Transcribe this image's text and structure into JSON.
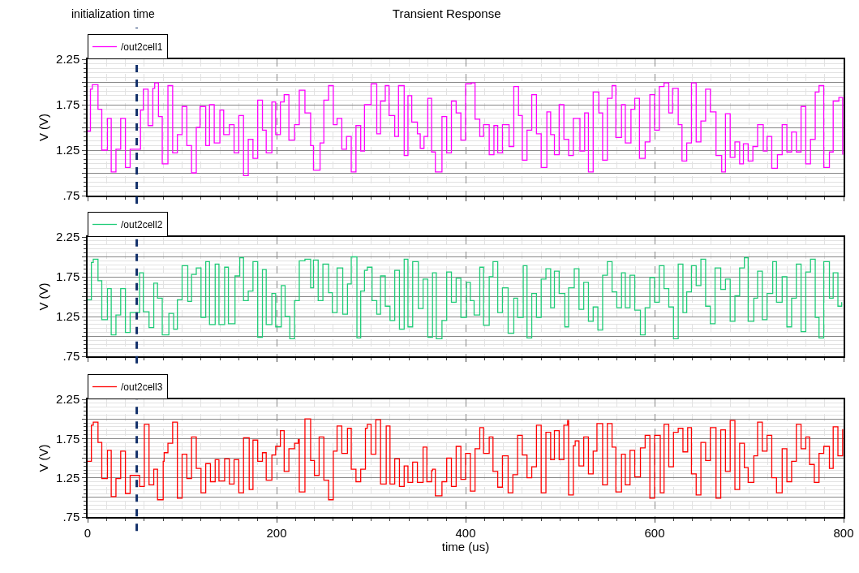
{
  "chart_data": [
    {
      "type": "step",
      "title": "Transient Response",
      "ylabel": "V (V)",
      "legend": "top left",
      "grid": true,
      "tick_labels": "y",
      "xlim": [
        0,
        800
      ],
      "xticks": [
        0,
        200,
        400,
        600,
        800
      ],
      "ylim": [
        0.75,
        2.25
      ],
      "yticks": [
        {
          "value": 0.75,
          "label": ".75"
        },
        {
          "value": 1.0,
          "label": null
        },
        1.25,
        {
          "value": 1.5,
          "label": null
        },
        1.75,
        {
          "value": 2.0,
          "label": null
        },
        2.25
      ],
      "ref_lines": [
        {
          "axis": "x",
          "value": 52,
          "label": "initialization time",
          "color": "#12306a",
          "line_style": "dashed"
        }
      ],
      "x": [
        0,
        3,
        5,
        11,
        15,
        21,
        25,
        30,
        35,
        40,
        45,
        56,
        59,
        64,
        69,
        71,
        75,
        79,
        85,
        90,
        95,
        100,
        105,
        110,
        115,
        119,
        125,
        129,
        134,
        140,
        144,
        150,
        155,
        160,
        165,
        170,
        175,
        180,
        185,
        189,
        195,
        199,
        204,
        208,
        213,
        219,
        224,
        230,
        236,
        239,
        246,
        250,
        255,
        260,
        264,
        269,
        274,
        279,
        284,
        289,
        293,
        300,
        306,
        310,
        315,
        319,
        325,
        329,
        335,
        339,
        343,
        349,
        352,
        356,
        360,
        364,
        368,
        375,
        380,
        385,
        390,
        395,
        400,
        406,
        410,
        415,
        419,
        425,
        430,
        434,
        439,
        446,
        451,
        456,
        460,
        465,
        470,
        475,
        480,
        486,
        490,
        494,
        499,
        504,
        509,
        514,
        521,
        526,
        530,
        535,
        541,
        545,
        550,
        555,
        559,
        565,
        569,
        575,
        579,
        584,
        590,
        595,
        600,
        605,
        610,
        615,
        619,
        625,
        629,
        634,
        639,
        644,
        649,
        654,
        659,
        665,
        671,
        675,
        680,
        685,
        690,
        694,
        699,
        704,
        709,
        715,
        719,
        724,
        730,
        735,
        740,
        745,
        750,
        755,
        760,
        765,
        770,
        774,
        779,
        785,
        789,
        795,
        799
      ],
      "series": [
        {
          "name": "/out2cell1",
          "color": "#ff00ff",
          "values": [
            1.46,
            1.92,
            1.97,
            1.7,
            1.25,
            1.6,
            1.01,
            1.26,
            1.6,
            1.06,
            1.26,
            1.69,
            1.92,
            1.52,
            1.93,
            1.99,
            1.62,
            1.1,
            1.96,
            1.22,
            1.42,
            1.73,
            1.3,
            1.0,
            1.5,
            1.73,
            1.3,
            1.75,
            1.33,
            1.69,
            1.42,
            1.53,
            1.22,
            1.63,
            0.97,
            1.37,
            1.16,
            1.8,
            1.47,
            1.22,
            1.78,
            1.42,
            1.78,
            1.86,
            1.36,
            1.53,
            1.91,
            1.66,
            1.3,
            1.03,
            1.33,
            1.8,
            1.96,
            1.53,
            1.6,
            1.26,
            1.4,
            1.01,
            1.52,
            1.24,
            1.75,
            1.98,
            1.43,
            1.79,
            1.96,
            1.63,
            1.4,
            1.96,
            1.19,
            1.85,
            1.56,
            1.43,
            1.27,
            1.4,
            1.82,
            1.23,
            1.01,
            1.62,
            1.22,
            1.79,
            1.66,
            1.36,
            1.98,
            1.99,
            1.59,
            1.4,
            1.53,
            1.2,
            1.52,
            1.22,
            1.53,
            1.29,
            1.95,
            1.63,
            1.14,
            1.47,
            1.86,
            1.43,
            1.06,
            1.67,
            1.42,
            1.2,
            1.75,
            1.37,
            1.19,
            1.6,
            1.24,
            1.66,
            1.01,
            1.89,
            1.66,
            1.14,
            1.82,
            1.96,
            1.39,
            1.75,
            1.33,
            1.7,
            1.82,
            1.16,
            1.34,
            1.86,
            1.47,
            1.95,
            1.99,
            1.66,
            1.93,
            1.53,
            1.13,
            1.33,
            1.99,
            1.34,
            1.57,
            1.92,
            1.67,
            1.19,
            1.01,
            1.65,
            1.17,
            1.34,
            1.1,
            1.32,
            1.13,
            1.29,
            1.53,
            1.24,
            1.4,
            1.05,
            1.2,
            1.53,
            1.23,
            1.45,
            1.23,
            1.73,
            1.1,
            1.37,
            1.89,
            1.96,
            1.06,
            1.23,
            1.79,
            1.83,
            1.2
          ]
        }
      ]
    },
    {
      "type": "step",
      "ylabel": "V (V)",
      "legend": "top left",
      "grid": true,
      "tick_labels": "y",
      "xlim": [
        0,
        800
      ],
      "xticks": [
        0,
        200,
        400,
        600,
        800
      ],
      "ylim": [
        0.75,
        2.25
      ],
      "yticks": [
        {
          "value": 0.75,
          "label": ".75"
        },
        {
          "value": 1.0,
          "label": null
        },
        1.25,
        {
          "value": 1.5,
          "label": null
        },
        1.75,
        {
          "value": 2.0,
          "label": null
        },
        2.25
      ],
      "ref_lines": [
        {
          "axis": "x",
          "value": 52,
          "color": "#12306a",
          "line_style": "dashed"
        }
      ],
      "x": [
        0,
        4,
        6,
        11,
        15,
        21,
        25,
        30,
        35,
        40,
        45,
        55,
        59,
        65,
        70,
        74,
        79,
        86,
        91,
        95,
        100,
        106,
        110,
        115,
        120,
        125,
        129,
        135,
        139,
        145,
        149,
        156,
        161,
        165,
        170,
        175,
        180,
        185,
        189,
        195,
        199,
        205,
        209,
        214,
        219,
        224,
        230,
        236,
        239,
        244,
        249,
        255,
        259,
        264,
        270,
        275,
        279,
        285,
        289,
        293,
        296,
        301,
        306,
        310,
        315,
        320,
        325,
        330,
        335,
        339,
        344,
        350,
        355,
        360,
        365,
        369,
        375,
        380,
        385,
        390,
        395,
        401,
        405,
        409,
        415,
        419,
        425,
        429,
        434,
        439,
        445,
        451,
        455,
        461,
        465,
        470,
        475,
        480,
        485,
        490,
        494,
        499,
        505,
        509,
        515,
        520,
        525,
        530,
        535,
        540,
        545,
        550,
        555,
        560,
        565,
        569,
        574,
        579,
        585,
        590,
        595,
        600,
        605,
        610,
        615,
        620,
        625,
        630,
        634,
        639,
        644,
        649,
        654,
        659,
        664,
        670,
        675,
        680,
        685,
        690,
        695,
        699,
        705,
        709,
        714,
        719,
        725,
        729,
        735,
        740,
        745,
        750,
        755,
        760,
        765,
        770,
        774,
        779,
        785,
        789,
        794,
        798
      ],
      "series": [
        {
          "name": "/out2cell2",
          "color": "#20cc78",
          "values": [
            1.46,
            1.93,
            1.97,
            1.7,
            1.21,
            1.6,
            1.02,
            1.27,
            1.6,
            1.05,
            1.3,
            1.8,
            1.31,
            1.11,
            1.67,
            1.48,
            1.02,
            1.29,
            1.09,
            1.46,
            1.89,
            1.44,
            1.78,
            1.86,
            1.24,
            1.94,
            1.15,
            1.91,
            1.15,
            1.87,
            1.16,
            1.76,
            1.99,
            1.45,
            1.57,
            1.94,
            0.99,
            1.84,
            1.15,
            1.54,
            1.12,
            1.64,
            1.25,
            0.97,
            1.45,
            1.95,
            1.97,
            1.61,
            1.96,
            1.45,
            1.91,
            1.55,
            1.3,
            1.86,
            1.28,
            1.66,
            2.0,
            0.98,
            1.57,
            1.83,
            1.87,
            1.45,
            1.28,
            1.76,
            1.38,
            1.2,
            1.83,
            1.09,
            1.97,
            1.12,
            1.94,
            1.35,
            1.72,
            0.99,
            1.8,
            0.97,
            1.2,
            1.81,
            1.43,
            1.73,
            1.24,
            1.68,
            1.45,
            1.27,
            1.87,
            1.14,
            1.75,
            1.94,
            1.3,
            1.61,
            1.04,
            1.48,
            1.24,
            1.89,
            0.98,
            1.54,
            1.24,
            1.72,
            1.85,
            1.36,
            1.82,
            1.54,
            1.12,
            1.61,
            1.85,
            1.34,
            1.68,
            1.19,
            1.37,
            1.08,
            1.77,
            1.94,
            1.56,
            1.36,
            1.8,
            1.36,
            1.77,
            1.33,
            1.02,
            1.36,
            1.74,
            1.43,
            1.89,
            1.6,
            1.37,
            0.97,
            1.91,
            1.3,
            1.56,
            1.89,
            1.64,
            1.97,
            1.38,
            1.16,
            1.86,
            1.59,
            1.72,
            1.19,
            1.51,
            1.86,
            1.99,
            1.19,
            1.48,
            1.82,
            1.21,
            1.54,
            1.94,
            1.43,
            1.75,
            1.12,
            1.48,
            1.91,
            1.06,
            1.81,
            1.97,
            1.24,
            0.98,
            1.94,
            1.48,
            1.8,
            1.38,
            1.43
          ]
        }
      ]
    },
    {
      "type": "step",
      "xlabel": "time (us)",
      "ylabel": "V (V)",
      "legend": "top left",
      "grid": true,
      "xlim": [
        0,
        800
      ],
      "xticks": [
        0,
        200,
        400,
        600,
        800
      ],
      "ylim": [
        0.75,
        2.25
      ],
      "yticks": [
        {
          "value": 0.75,
          "label": ".75"
        },
        {
          "value": 1.0,
          "label": null
        },
        1.25,
        {
          "value": 1.5,
          "label": null
        },
        1.75,
        {
          "value": 2.0,
          "label": null
        },
        2.25
      ],
      "ref_lines": [
        {
          "axis": "x",
          "value": 52,
          "color": "#12306a",
          "line_style": "dashed"
        }
      ],
      "x": [
        0,
        4,
        6,
        11,
        15,
        21,
        25,
        30,
        35,
        40,
        45,
        55,
        60,
        65,
        70,
        74,
        80,
        81,
        85,
        90,
        95,
        100,
        105,
        110,
        115,
        120,
        125,
        130,
        135,
        139,
        145,
        150,
        155,
        160,
        165,
        171,
        175,
        180,
        185,
        189,
        195,
        199,
        204,
        208,
        213,
        219,
        223,
        224,
        230,
        236,
        240,
        245,
        250,
        255,
        260,
        264,
        269,
        275,
        279,
        284,
        289,
        294,
        296,
        300,
        305,
        310,
        316,
        320,
        325,
        330,
        335,
        339,
        344,
        349,
        355,
        359,
        364,
        365,
        368,
        375,
        380,
        385,
        390,
        395,
        400,
        405,
        410,
        415,
        419,
        425,
        429,
        434,
        439,
        445,
        450,
        455,
        460,
        465,
        470,
        475,
        480,
        485,
        490,
        494,
        499,
        504,
        508,
        509,
        514,
        516,
        520,
        525,
        530,
        535,
        539,
        545,
        550,
        555,
        559,
        565,
        569,
        574,
        579,
        585,
        590,
        595,
        600,
        606,
        610,
        615,
        620,
        625,
        630,
        635,
        639,
        644,
        649,
        654,
        659,
        665,
        670,
        675,
        680,
        685,
        690,
        695,
        699,
        705,
        709,
        714,
        719,
        724,
        729,
        735,
        740,
        745,
        750,
        755,
        760,
        764,
        769,
        774,
        779,
        785,
        789,
        794,
        799
      ],
      "series": [
        {
          "name": "/out2cell3",
          "color": "#ff0000",
          "values": [
            1.46,
            1.92,
            1.96,
            1.7,
            1.24,
            1.6,
            1.01,
            1.24,
            1.59,
            1.05,
            1.28,
            1.14,
            1.93,
            1.16,
            1.36,
            0.97,
            1.46,
            1.57,
            1.69,
            1.96,
            0.99,
            1.55,
            1.24,
            1.77,
            1.37,
            1.06,
            1.43,
            1.2,
            1.48,
            1.21,
            1.49,
            1.17,
            1.48,
            1.06,
            1.76,
            1.1,
            1.73,
            1.46,
            1.57,
            1.22,
            1.54,
            1.65,
            1.85,
            1.33,
            1.62,
            1.69,
            1.74,
            1.07,
            2.0,
            1.47,
            1.28,
            1.77,
            1.22,
            0.97,
            1.59,
            1.91,
            1.56,
            1.88,
            1.36,
            1.2,
            1.36,
            1.88,
            1.93,
            1.55,
            1.99,
            1.17,
            1.91,
            1.17,
            1.49,
            1.14,
            1.4,
            1.19,
            1.45,
            1.19,
            1.64,
            1.2,
            1.34,
            1.36,
            1.02,
            1.2,
            1.5,
            1.14,
            1.65,
            1.23,
            1.56,
            1.08,
            1.62,
            1.89,
            1.56,
            1.77,
            1.33,
            1.13,
            1.53,
            1.06,
            1.29,
            1.79,
            1.54,
            1.25,
            1.39,
            1.92,
            1.06,
            1.83,
            1.48,
            1.85,
            1.48,
            1.92,
            1.98,
            1.03,
            1.66,
            1.72,
            1.4,
            1.77,
            1.3,
            1.59,
            1.94,
            1.16,
            1.94,
            1.64,
            1.07,
            1.55,
            1.16,
            1.6,
            1.26,
            1.63,
            1.79,
            0.99,
            1.79,
            1.06,
            1.93,
            1.39,
            1.83,
            1.88,
            1.58,
            1.89,
            1.3,
            1.03,
            1.7,
            1.47,
            1.89,
            0.99,
            1.86,
            1.33,
            1.98,
            1.1,
            1.69,
            1.38,
            1.19,
            1.53,
            1.96,
            1.59,
            1.79,
            1.25,
            1.06,
            1.62,
            1.2,
            1.46,
            1.93,
            1.62,
            1.77,
            1.42,
            1.19,
            1.56,
            1.65,
            1.37,
            1.9,
            1.53,
            1.87
          ]
        }
      ]
    }
  ]
}
